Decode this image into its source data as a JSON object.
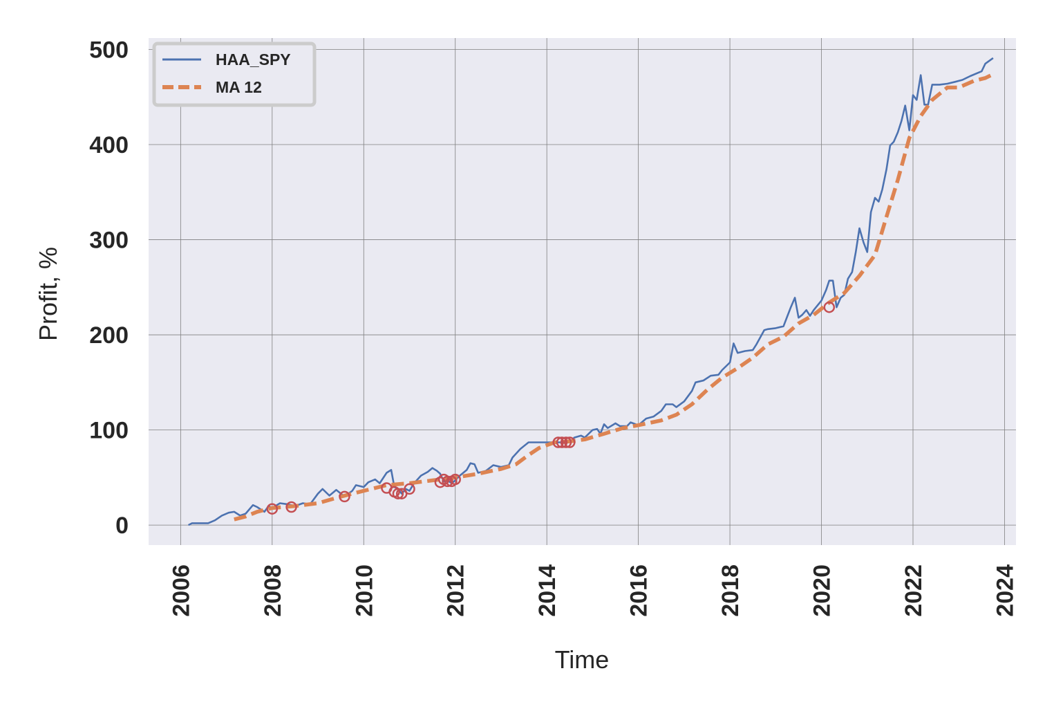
{
  "chart_data": {
    "type": "line",
    "title": "",
    "xlabel": "Time",
    "ylabel": "Profit, %",
    "x_ticks": [
      "2006",
      "2008",
      "2010",
      "2012",
      "2014",
      "2016",
      "2018",
      "2020",
      "2022",
      "2024"
    ],
    "y_ticks": [
      "0",
      "100",
      "200",
      "300",
      "400",
      "500"
    ],
    "xlim": [
      2005.3,
      2024.25
    ],
    "ylim": [
      -21,
      512
    ],
    "grid": true,
    "legend_position": "top-left",
    "colors": {
      "background": "#eaeaf2",
      "grid": "#7f7f7f",
      "haa_spy": "#4c72b0",
      "ma12": "#dd8452",
      "markers": "#c44e52"
    },
    "series": [
      {
        "name": "HAA_SPY",
        "style": "solid",
        "points": [
          [
            2006.17,
            0
          ],
          [
            2006.25,
            2
          ],
          [
            2006.4,
            2
          ],
          [
            2006.6,
            2
          ],
          [
            2006.75,
            5
          ],
          [
            2006.9,
            10
          ],
          [
            2007.05,
            13
          ],
          [
            2007.17,
            14
          ],
          [
            2007.3,
            10
          ],
          [
            2007.42,
            12
          ],
          [
            2007.58,
            21
          ],
          [
            2007.67,
            19
          ],
          [
            2007.83,
            14
          ],
          [
            2007.92,
            20
          ],
          [
            2008.0,
            18
          ],
          [
            2008.17,
            23
          ],
          [
            2008.33,
            22
          ],
          [
            2008.5,
            20
          ],
          [
            2008.67,
            23
          ],
          [
            2008.83,
            22
          ],
          [
            2009.0,
            33
          ],
          [
            2009.1,
            38
          ],
          [
            2009.25,
            31
          ],
          [
            2009.4,
            37
          ],
          [
            2009.58,
            30
          ],
          [
            2009.75,
            36
          ],
          [
            2009.83,
            42
          ],
          [
            2010.0,
            40
          ],
          [
            2010.1,
            45
          ],
          [
            2010.25,
            48
          ],
          [
            2010.35,
            44
          ],
          [
            2010.5,
            55
          ],
          [
            2010.6,
            58
          ],
          [
            2010.67,
            40
          ],
          [
            2010.75,
            38
          ],
          [
            2010.83,
            33
          ],
          [
            2010.92,
            38
          ],
          [
            2011.0,
            36
          ],
          [
            2011.1,
            44
          ],
          [
            2011.25,
            52
          ],
          [
            2011.4,
            56
          ],
          [
            2011.5,
            60
          ],
          [
            2011.6,
            57
          ],
          [
            2011.67,
            54
          ],
          [
            2011.75,
            46
          ],
          [
            2011.83,
            47
          ],
          [
            2011.92,
            44
          ],
          [
            2012.0,
            47
          ],
          [
            2012.1,
            52
          ],
          [
            2012.25,
            58
          ],
          [
            2012.33,
            65
          ],
          [
            2012.42,
            64
          ],
          [
            2012.5,
            55
          ],
          [
            2012.67,
            57
          ],
          [
            2012.83,
            63
          ],
          [
            2013.0,
            61
          ],
          [
            2013.17,
            63
          ],
          [
            2013.25,
            71
          ],
          [
            2013.42,
            80
          ],
          [
            2013.6,
            87
          ],
          [
            2013.75,
            87
          ],
          [
            2014.0,
            87
          ],
          [
            2014.25,
            87
          ],
          [
            2014.4,
            87
          ],
          [
            2014.5,
            87
          ],
          [
            2014.6,
            92
          ],
          [
            2014.75,
            94
          ],
          [
            2014.83,
            92
          ],
          [
            2015.0,
            100
          ],
          [
            2015.1,
            101
          ],
          [
            2015.17,
            96
          ],
          [
            2015.25,
            106
          ],
          [
            2015.33,
            102
          ],
          [
            2015.5,
            107
          ],
          [
            2015.6,
            104
          ],
          [
            2015.75,
            104
          ],
          [
            2015.83,
            108
          ],
          [
            2016.0,
            105
          ],
          [
            2016.17,
            112
          ],
          [
            2016.33,
            114
          ],
          [
            2016.5,
            120
          ],
          [
            2016.6,
            127
          ],
          [
            2016.75,
            127
          ],
          [
            2016.83,
            124
          ],
          [
            2017.0,
            130
          ],
          [
            2017.17,
            141
          ],
          [
            2017.25,
            150
          ],
          [
            2017.42,
            152
          ],
          [
            2017.58,
            157
          ],
          [
            2017.75,
            158
          ],
          [
            2017.83,
            163
          ],
          [
            2018.0,
            171
          ],
          [
            2018.08,
            191
          ],
          [
            2018.17,
            181
          ],
          [
            2018.33,
            183
          ],
          [
            2018.5,
            184
          ],
          [
            2018.58,
            190
          ],
          [
            2018.75,
            205
          ],
          [
            2018.83,
            206
          ],
          [
            2019.0,
            207
          ],
          [
            2019.17,
            209
          ],
          [
            2019.25,
            219
          ],
          [
            2019.33,
            229
          ],
          [
            2019.42,
            239
          ],
          [
            2019.5,
            218
          ],
          [
            2019.58,
            221
          ],
          [
            2019.67,
            226
          ],
          [
            2019.75,
            220
          ],
          [
            2019.83,
            226
          ],
          [
            2020.0,
            236
          ],
          [
            2020.1,
            247
          ],
          [
            2020.17,
            257
          ],
          [
            2020.25,
            257
          ],
          [
            2020.33,
            229
          ],
          [
            2020.42,
            239
          ],
          [
            2020.5,
            242
          ],
          [
            2020.58,
            259
          ],
          [
            2020.67,
            266
          ],
          [
            2020.75,
            287
          ],
          [
            2020.83,
            312
          ],
          [
            2020.92,
            297
          ],
          [
            2021.0,
            287
          ],
          [
            2021.08,
            329
          ],
          [
            2021.17,
            344
          ],
          [
            2021.25,
            340
          ],
          [
            2021.33,
            353
          ],
          [
            2021.42,
            374
          ],
          [
            2021.5,
            399
          ],
          [
            2021.58,
            403
          ],
          [
            2021.67,
            413
          ],
          [
            2021.75,
            425
          ],
          [
            2021.83,
            441
          ],
          [
            2021.92,
            415
          ],
          [
            2022.0,
            452
          ],
          [
            2022.08,
            447
          ],
          [
            2022.17,
            473
          ],
          [
            2022.25,
            442
          ],
          [
            2022.33,
            442
          ],
          [
            2022.42,
            463
          ],
          [
            2022.58,
            463
          ],
          [
            2022.75,
            464
          ],
          [
            2022.92,
            466
          ],
          [
            2023.08,
            468
          ],
          [
            2023.25,
            472
          ],
          [
            2023.5,
            477
          ],
          [
            2023.58,
            485
          ],
          [
            2023.75,
            491
          ]
        ]
      },
      {
        "name": "MA 12",
        "style": "dashed",
        "points": [
          [
            2007.17,
            6
          ],
          [
            2007.42,
            9
          ],
          [
            2007.67,
            14
          ],
          [
            2008.0,
            18
          ],
          [
            2008.5,
            20
          ],
          [
            2009.0,
            23
          ],
          [
            2009.5,
            30
          ],
          [
            2010.0,
            36
          ],
          [
            2010.5,
            42
          ],
          [
            2011.0,
            44
          ],
          [
            2011.5,
            47
          ],
          [
            2012.0,
            50
          ],
          [
            2012.5,
            54
          ],
          [
            2013.0,
            59
          ],
          [
            2013.33,
            64
          ],
          [
            2013.58,
            73
          ],
          [
            2013.83,
            81
          ],
          [
            2014.17,
            87
          ],
          [
            2014.5,
            88
          ],
          [
            2014.83,
            90
          ],
          [
            2015.25,
            96
          ],
          [
            2015.67,
            102
          ],
          [
            2016.0,
            105
          ],
          [
            2016.5,
            110
          ],
          [
            2016.83,
            116
          ],
          [
            2017.17,
            127
          ],
          [
            2017.5,
            142
          ],
          [
            2017.83,
            155
          ],
          [
            2018.17,
            165
          ],
          [
            2018.5,
            176
          ],
          [
            2018.83,
            190
          ],
          [
            2019.17,
            198
          ],
          [
            2019.5,
            212
          ],
          [
            2019.83,
            221
          ],
          [
            2020.17,
            234
          ],
          [
            2020.5,
            244
          ],
          [
            2020.83,
            262
          ],
          [
            2021.17,
            284
          ],
          [
            2021.42,
            324
          ],
          [
            2021.67,
            363
          ],
          [
            2021.92,
            407
          ],
          [
            2022.17,
            430
          ],
          [
            2022.42,
            447
          ],
          [
            2022.75,
            460
          ],
          [
            2023.0,
            460
          ],
          [
            2023.33,
            467
          ],
          [
            2023.58,
            470
          ],
          [
            2023.75,
            474
          ]
        ]
      }
    ],
    "markers": {
      "name": "signals",
      "style": "open-circle",
      "points": [
        [
          2008.0,
          17
        ],
        [
          2008.42,
          19
        ],
        [
          2009.58,
          30
        ],
        [
          2010.5,
          39
        ],
        [
          2010.67,
          35
        ],
        [
          2010.75,
          33
        ],
        [
          2010.83,
          33
        ],
        [
          2011.0,
          38
        ],
        [
          2011.67,
          45
        ],
        [
          2011.75,
          48
        ],
        [
          2011.83,
          46
        ],
        [
          2011.92,
          46
        ],
        [
          2012.0,
          48
        ],
        [
          2014.25,
          87
        ],
        [
          2014.33,
          87
        ],
        [
          2014.42,
          87
        ],
        [
          2014.5,
          87
        ],
        [
          2020.17,
          229
        ]
      ]
    }
  }
}
